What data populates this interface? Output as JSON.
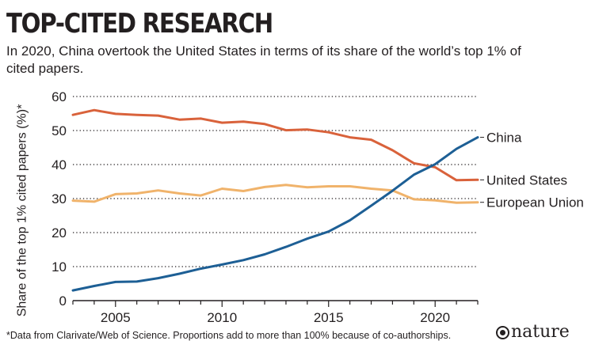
{
  "header": {
    "title": "TOP-CITED RESEARCH",
    "subtitle": "In 2020, China overtook the United States in terms of its share of the world’s top 1% of cited papers."
  },
  "footer": {
    "note": "*Data from Clarivate/Web of Science. Proportions add to more than 100% because of co-authorships.",
    "logo_text": "nature"
  },
  "chart_data": {
    "type": "line",
    "title": "TOP-CITED RESEARCH",
    "ylabel": "Share of the top 1% cited papers (%)*",
    "xlabel": "",
    "xlim": [
      2003,
      2022
    ],
    "ylim": [
      0,
      60
    ],
    "x_ticks": [
      2005,
      2010,
      2015,
      2020
    ],
    "y_ticks": [
      0,
      10,
      20,
      30,
      40,
      50,
      60
    ],
    "grid": "horizontal dotted",
    "legend": "direct labels at line ends",
    "x": [
      2003,
      2004,
      2005,
      2006,
      2007,
      2008,
      2009,
      2010,
      2011,
      2012,
      2013,
      2014,
      2015,
      2016,
      2017,
      2018,
      2019,
      2020,
      2021,
      2022
    ],
    "series": [
      {
        "name": "China",
        "color": "#1d5f95",
        "values": [
          3.0,
          4.3,
          5.5,
          5.6,
          6.6,
          7.9,
          9.4,
          10.6,
          11.9,
          13.6,
          15.8,
          18.2,
          20.3,
          23.6,
          27.9,
          32.3,
          37.0,
          40.1,
          44.6,
          48.0
        ]
      },
      {
        "name": "United States",
        "color": "#d9623b",
        "values": [
          54.6,
          56.0,
          54.9,
          54.6,
          54.4,
          53.2,
          53.5,
          52.3,
          52.6,
          51.9,
          50.1,
          50.3,
          49.5,
          48.0,
          47.3,
          44.2,
          40.4,
          39.2,
          35.4,
          35.5
        ]
      },
      {
        "name": "European Union",
        "color": "#f0b36b",
        "values": [
          29.4,
          29.1,
          31.3,
          31.5,
          32.4,
          31.5,
          30.9,
          32.9,
          32.2,
          33.4,
          34.0,
          33.3,
          33.6,
          33.6,
          32.9,
          32.4,
          29.8,
          29.5,
          28.8,
          28.9
        ]
      }
    ]
  }
}
